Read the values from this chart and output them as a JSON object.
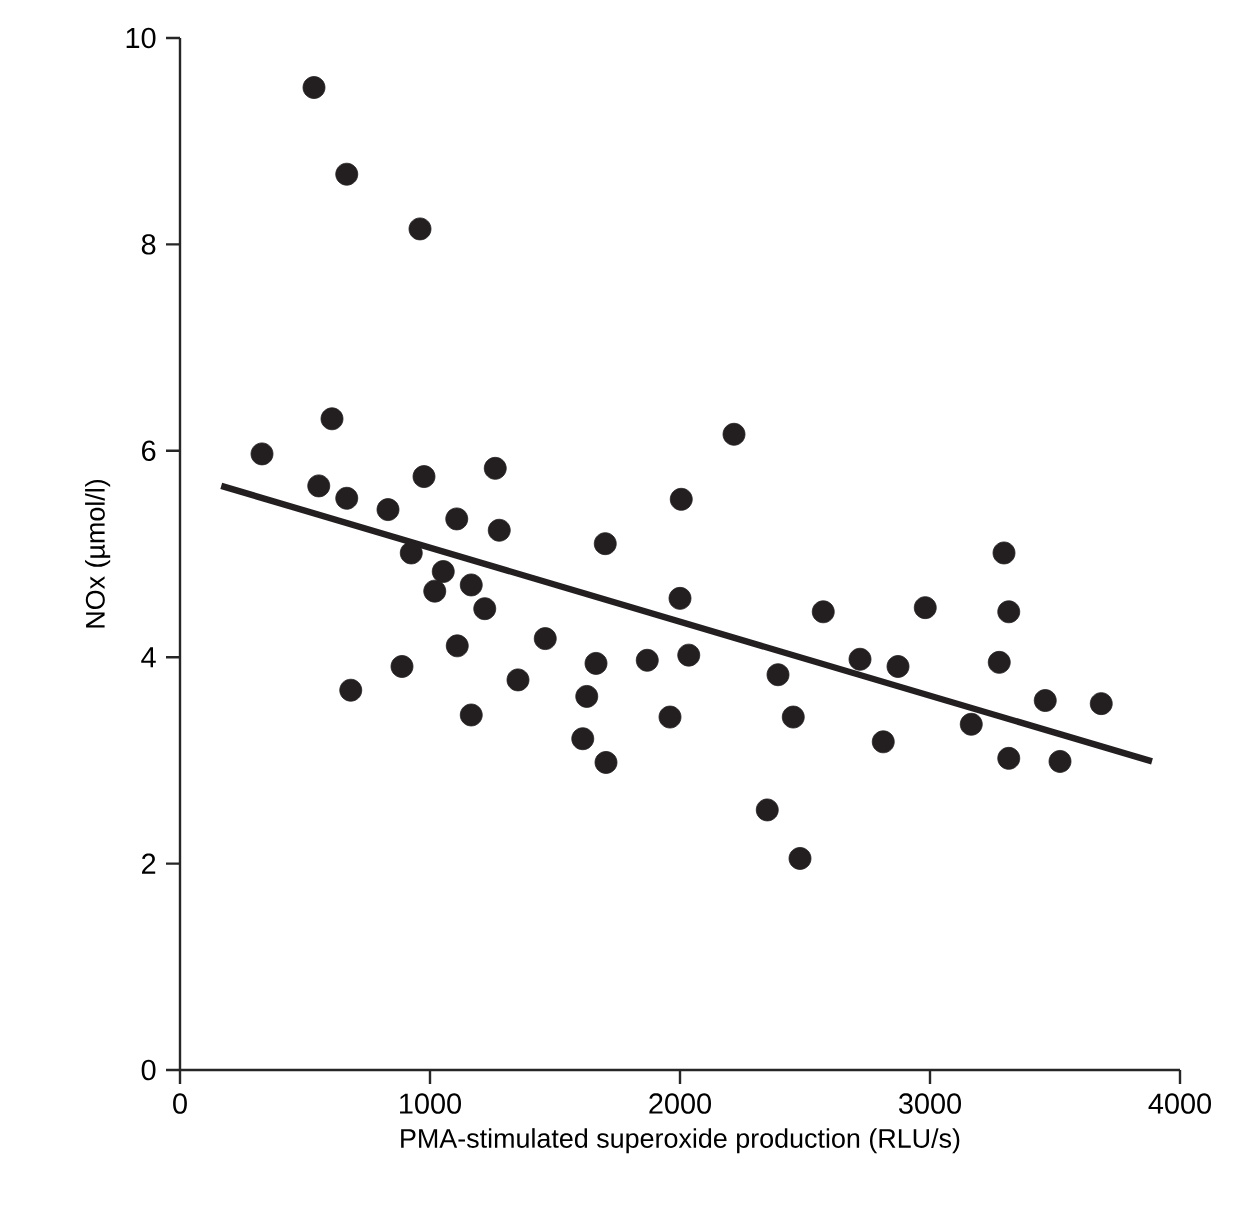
{
  "chart_data": {
    "type": "scatter",
    "xlabel": "PMA-stimulated superoxide production (RLU/s)",
    "ylabel": "NOx (µmol/l)",
    "xlim": [
      0,
      4000
    ],
    "ylim": [
      0,
      10
    ],
    "xticks": [
      0,
      1000,
      2000,
      3000,
      4000
    ],
    "yticks": [
      0,
      2,
      4,
      6,
      8,
      10
    ],
    "series": [
      {
        "type": "scatter",
        "marker": "circle",
        "color": "#231f20",
        "x": [
          536,
          667,
          960,
          328,
          608,
          555,
          667,
          832,
          976,
          1261,
          1107,
          1277,
          925,
          2005,
          1701,
          683,
          888,
          1019,
          1053,
          1165,
          1219,
          1109,
          1165,
          1352,
          1461,
          1664,
          1627,
          1611,
          1704,
          1869,
          2000,
          2035,
          1960,
          2216,
          2392,
          2453,
          2349,
          2480,
          2573,
          2720,
          2872,
          2813,
          2981,
          3165,
          3296,
          3315,
          3277,
          3315,
          3461,
          3520,
          3685
        ],
        "values": [
          9.52,
          8.68,
          8.15,
          5.97,
          6.31,
          5.66,
          5.54,
          5.43,
          5.75,
          5.83,
          5.34,
          5.23,
          5.01,
          5.53,
          5.1,
          3.68,
          3.91,
          4.64,
          4.83,
          4.7,
          4.47,
          4.11,
          3.44,
          3.78,
          4.18,
          3.94,
          3.62,
          3.21,
          2.98,
          3.97,
          4.57,
          4.02,
          3.42,
          6.16,
          3.83,
          3.42,
          2.52,
          2.05,
          4.44,
          3.98,
          3.91,
          3.18,
          4.48,
          3.35,
          5.01,
          4.44,
          3.95,
          3.02,
          3.58,
          2.99,
          3.55
        ]
      },
      {
        "type": "line",
        "marker": "none",
        "color": "#231f20",
        "x": [
          165,
          3888
        ],
        "values": [
          5.66,
          2.99
        ]
      }
    ]
  }
}
